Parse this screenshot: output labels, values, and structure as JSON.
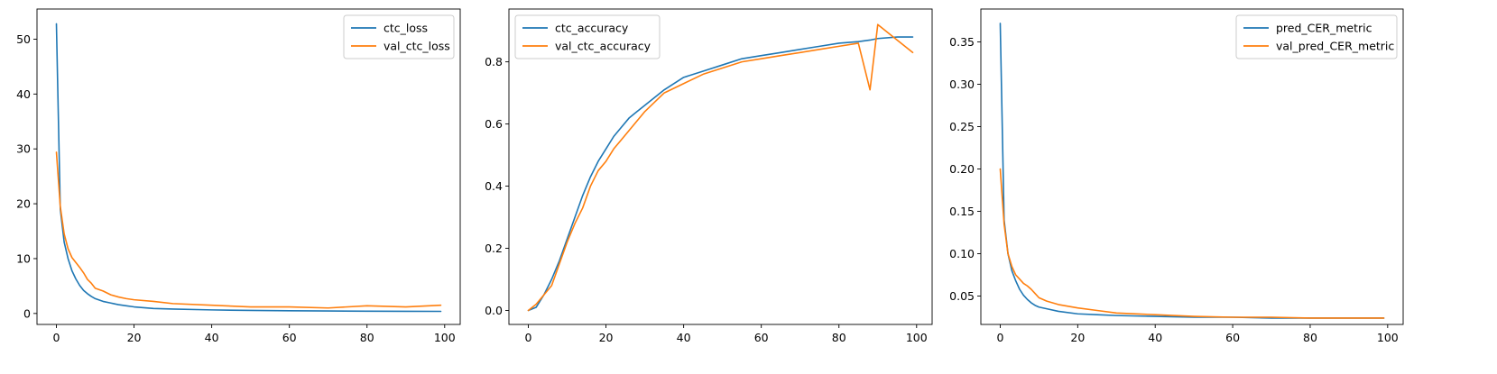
{
  "chart_data": [
    {
      "type": "line",
      "x": [
        0,
        1,
        2,
        3,
        4,
        5,
        6,
        7,
        8,
        9,
        10,
        12,
        14,
        16,
        18,
        20,
        25,
        30,
        40,
        50,
        60,
        70,
        80,
        90,
        99
      ],
      "xlim": [
        -5,
        104
      ],
      "ylim": [
        -2,
        55.5
      ],
      "xticks": [
        0,
        20,
        40,
        60,
        80,
        100
      ],
      "yticks": [
        0,
        10,
        20,
        30,
        40,
        50
      ],
      "legend_position": "top-right",
      "colors": [
        "#1f77b4",
        "#ff7f0e"
      ],
      "series": [
        {
          "name": "ctc_loss",
          "values": [
            52.8,
            19.0,
            13.0,
            10.0,
            7.8,
            6.3,
            5.1,
            4.2,
            3.6,
            3.1,
            2.7,
            2.2,
            1.9,
            1.6,
            1.4,
            1.2,
            0.9,
            0.8,
            0.65,
            0.55,
            0.5,
            0.45,
            0.42,
            0.4,
            0.38
          ]
        },
        {
          "name": "val_ctc_loss",
          "values": [
            29.4,
            19.5,
            14.5,
            11.8,
            10.2,
            9.3,
            8.4,
            7.4,
            6.2,
            5.5,
            4.6,
            4.1,
            3.4,
            3.0,
            2.7,
            2.5,
            2.2,
            1.8,
            1.5,
            1.2,
            1.2,
            1.0,
            1.4,
            1.2,
            1.5
          ]
        }
      ]
    },
    {
      "type": "line",
      "x": [
        0,
        2,
        4,
        6,
        8,
        10,
        12,
        14,
        16,
        18,
        20,
        22,
        24,
        26,
        28,
        30,
        35,
        40,
        45,
        50,
        55,
        60,
        65,
        70,
        75,
        80,
        85,
        88,
        90,
        95,
        99
      ],
      "xlim": [
        -5,
        104
      ],
      "ylim": [
        -0.045,
        0.97
      ],
      "xticks": [
        0,
        20,
        40,
        60,
        80,
        100
      ],
      "yticks": [
        0.0,
        0.2,
        0.4,
        0.6,
        0.8
      ],
      "legend_position": "top-left",
      "colors": [
        "#1f77b4",
        "#ff7f0e"
      ],
      "series": [
        {
          "name": "ctc_accuracy",
          "values": [
            0.0,
            0.01,
            0.05,
            0.1,
            0.16,
            0.23,
            0.3,
            0.37,
            0.43,
            0.48,
            0.52,
            0.56,
            0.59,
            0.62,
            0.64,
            0.66,
            0.71,
            0.75,
            0.77,
            0.79,
            0.81,
            0.82,
            0.83,
            0.84,
            0.85,
            0.86,
            0.865,
            0.87,
            0.875,
            0.88,
            0.88
          ]
        },
        {
          "name": "val_ctc_accuracy",
          "values": [
            0.0,
            0.02,
            0.05,
            0.08,
            0.15,
            0.22,
            0.28,
            0.33,
            0.4,
            0.45,
            0.48,
            0.52,
            0.55,
            0.58,
            0.61,
            0.64,
            0.7,
            0.73,
            0.76,
            0.78,
            0.8,
            0.81,
            0.82,
            0.83,
            0.84,
            0.85,
            0.86,
            0.71,
            0.92,
            0.87,
            0.83
          ]
        }
      ]
    },
    {
      "type": "line",
      "x": [
        0,
        1,
        2,
        3,
        4,
        5,
        6,
        7,
        8,
        9,
        10,
        12,
        15,
        20,
        25,
        30,
        40,
        50,
        60,
        70,
        80,
        90,
        99
      ],
      "xlim": [
        -5,
        104
      ],
      "ylim": [
        0.0165,
        0.3889
      ],
      "xticks": [
        0,
        20,
        40,
        60,
        80,
        100
      ],
      "yticks": [
        0.05,
        0.1,
        0.15,
        0.2,
        0.25,
        0.3,
        0.35
      ],
      "legend_position": "top-right",
      "colors": [
        "#1f77b4",
        "#ff7f0e"
      ],
      "series": [
        {
          "name": "pred_CER_metric",
          "values": [
            0.372,
            0.14,
            0.1,
            0.08,
            0.068,
            0.058,
            0.051,
            0.046,
            0.042,
            0.039,
            0.037,
            0.035,
            0.032,
            0.029,
            0.028,
            0.027,
            0.026,
            0.025,
            0.025,
            0.024,
            0.024,
            0.024,
            0.024
          ]
        },
        {
          "name": "val_pred_CER_metric",
          "values": [
            0.2,
            0.135,
            0.1,
            0.085,
            0.075,
            0.07,
            0.065,
            0.062,
            0.058,
            0.053,
            0.048,
            0.044,
            0.04,
            0.036,
            0.033,
            0.03,
            0.028,
            0.026,
            0.025,
            0.025,
            0.024,
            0.024,
            0.024
          ]
        }
      ]
    }
  ]
}
